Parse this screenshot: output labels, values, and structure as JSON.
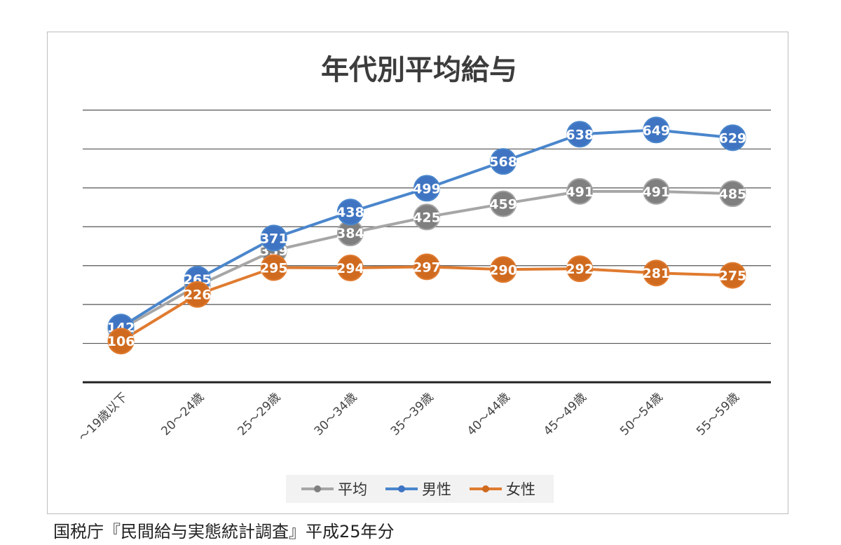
{
  "chart_data": {
    "type": "line",
    "title": "年代別平均給与",
    "categories": [
      "～19歳以下",
      "20～24歳",
      "25～29歳",
      "30～34歳",
      "35～39歳",
      "40～44歳",
      "45～49歳",
      "50～54歳",
      "55～59歳"
    ],
    "series": [
      {
        "name": "平均",
        "color": "#a6a6a6",
        "marker_color": "#7f7f7f",
        "values": [
          137,
          248,
          339,
          384,
          425,
          459,
          491,
          491,
          485
        ]
      },
      {
        "name": "男性",
        "color": "#4a86cc",
        "marker_color": "#3f74c2",
        "values": [
          142,
          265,
          371,
          438,
          499,
          568,
          638,
          649,
          629
        ]
      },
      {
        "name": "女性",
        "color": "#e07b30",
        "marker_color": "#cf6a1f",
        "values": [
          106,
          226,
          295,
          294,
          297,
          290,
          292,
          281,
          275
        ]
      }
    ],
    "ylim": [
      0,
      700
    ],
    "y_gridline_step": 100,
    "y_tick_labels_visible": false,
    "grid": true,
    "legend_position": "bottom",
    "data_labels": true
  },
  "source_note": "国税庁『民間給与実態統計調査』平成25年分"
}
